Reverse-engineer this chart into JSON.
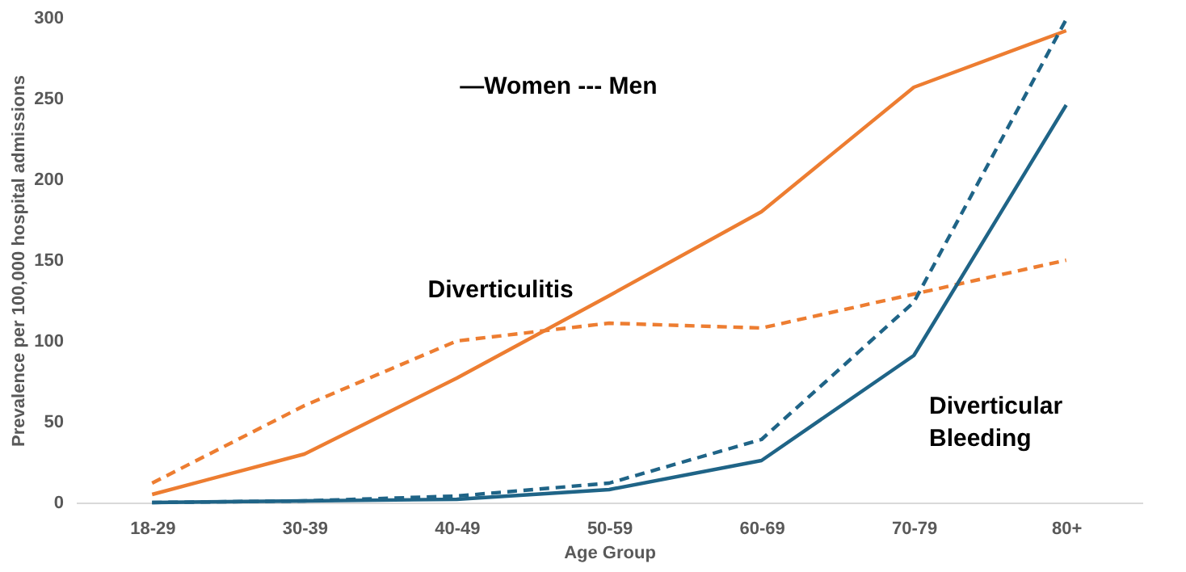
{
  "chart_data": {
    "type": "line",
    "xlabel": "Age Group",
    "ylabel": "Prevalence per 100,000 hospital admissions",
    "categories": [
      "18-29",
      "30-39",
      "40-49",
      "50-59",
      "60-69",
      "70-79",
      "80+"
    ],
    "series": [
      {
        "color": "#ed7d31",
        "line_style": "solid",
        "values": [
          5,
          30,
          77,
          128,
          180,
          257,
          292
        ]
      },
      {
        "color": "#ed7d31",
        "line_style": "dashed",
        "values": [
          12,
          60,
          100,
          111,
          108,
          129,
          150
        ]
      },
      {
        "color": "#1f6487",
        "line_style": "solid",
        "values": [
          0,
          1,
          2,
          8,
          26,
          91,
          246
        ]
      },
      {
        "color": "#1f6487",
        "line_style": "dashed",
        "values": [
          0,
          1,
          4,
          12,
          39,
          124,
          299
        ]
      }
    ],
    "ylim": [
      0,
      300
    ],
    "yticks": [
      0,
      50,
      100,
      150,
      200,
      250,
      300
    ],
    "grid": false,
    "marker": "none",
    "annotations": [
      "—Women --- Men",
      "Diverticulitis",
      "Diverticular\nBleeding"
    ]
  }
}
